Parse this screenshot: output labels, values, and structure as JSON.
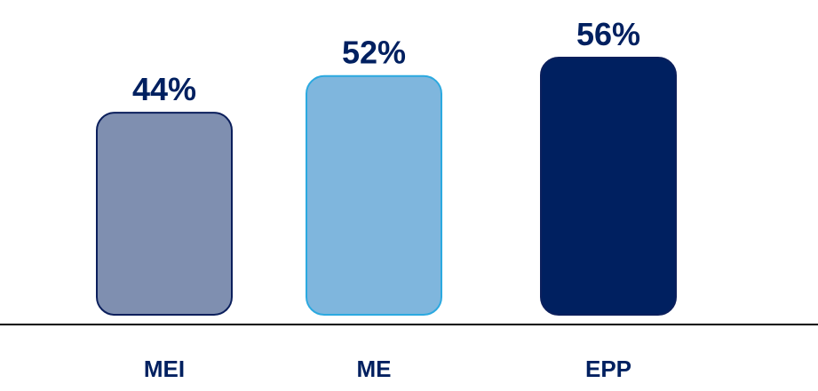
{
  "chart_data": {
    "type": "bar",
    "categories": [
      "MEI",
      "ME",
      "EPP"
    ],
    "values": [
      44,
      52,
      56
    ],
    "value_labels": [
      "44%",
      "52%",
      "56%"
    ],
    "ylim": [
      0,
      60
    ],
    "grid": false,
    "colors": {
      "fills": [
        "#7F8FB0",
        "#7FB6DD",
        "#002060"
      ],
      "strokes": [
        "#0B1F5C",
        "#2BA9E0",
        "#0B1F5C"
      ],
      "text": "#002060",
      "axis": "#000000"
    }
  }
}
